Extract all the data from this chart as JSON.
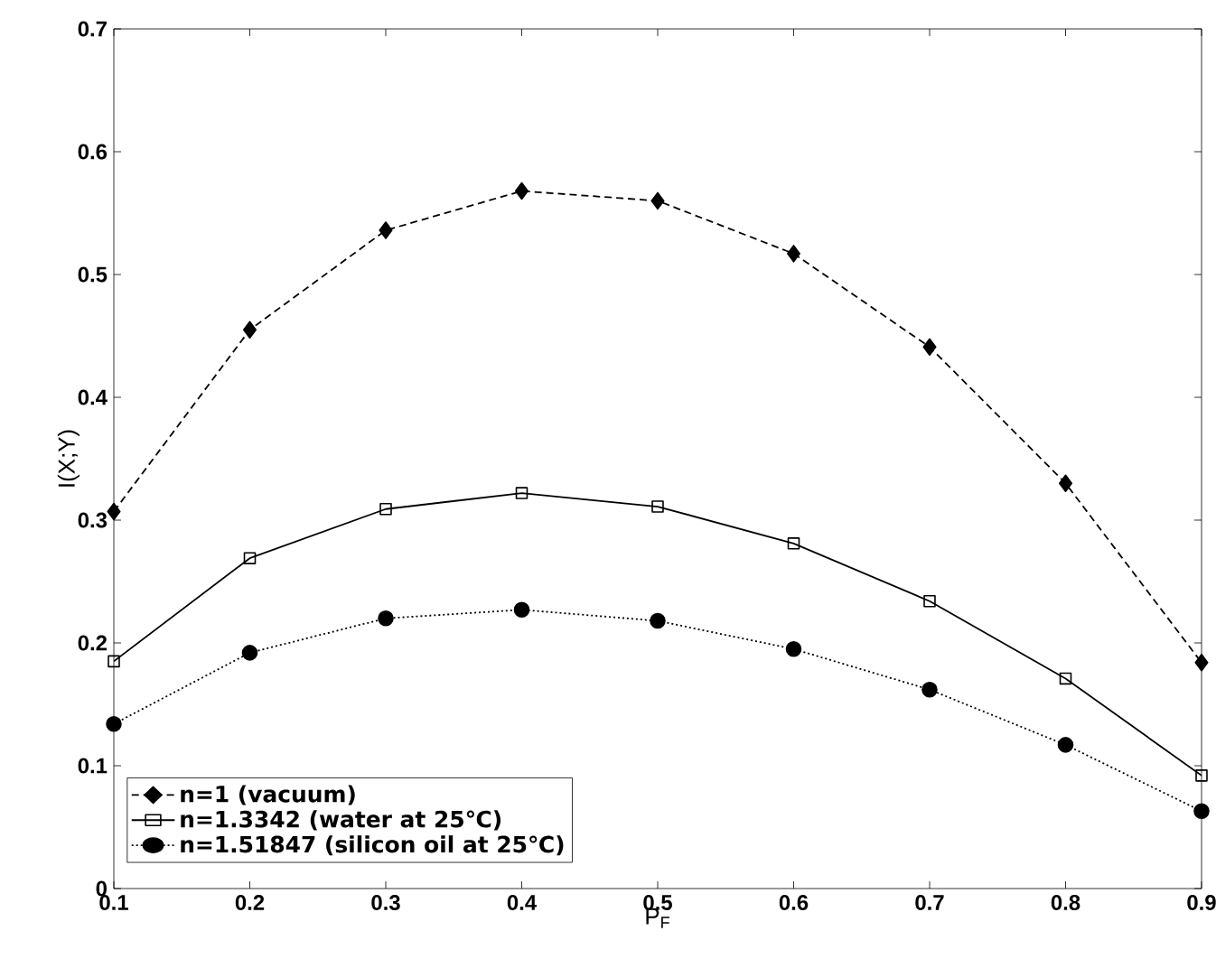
{
  "chart_data": {
    "type": "line",
    "xlabel": "P$_{F}$",
    "ylabel": "I(X;Y)",
    "x": [
      0.1,
      0.2,
      0.3,
      0.4,
      0.5,
      0.6,
      0.7,
      0.8,
      0.9
    ],
    "series": [
      {
        "name": "n=1 (vacuum)",
        "color": "#000000",
        "marker": "diamond",
        "line_style": "dashed",
        "values": [
          0.307,
          0.455,
          0.536,
          0.568,
          0.56,
          0.517,
          0.441,
          0.33,
          0.184
        ]
      },
      {
        "name": "n=1.3342 (water at 25℃)",
        "color": "#000000",
        "marker": "square",
        "line_style": "solid",
        "values": [
          0.185,
          0.269,
          0.309,
          0.322,
          0.311,
          0.281,
          0.234,
          0.171,
          0.092
        ]
      },
      {
        "name": "n=1.51847 (silicon oil at 25℃)",
        "color": "#000000",
        "marker": "circle",
        "line_style": "dotted",
        "values": [
          0.134,
          0.192,
          0.22,
          0.227,
          0.218,
          0.195,
          0.162,
          0.117,
          0.063
        ]
      }
    ],
    "xlim": [
      0.1,
      0.9
    ],
    "xticks": [
      0.1,
      0.2,
      0.3,
      0.4,
      0.5,
      0.6,
      0.7,
      0.8,
      0.9
    ],
    "ylim": [
      0,
      0.7
    ],
    "yticks": [
      0,
      0.1,
      0.2,
      0.3,
      0.4,
      0.5,
      0.6,
      0.7
    ],
    "grid": false,
    "legend": "bottom left"
  }
}
